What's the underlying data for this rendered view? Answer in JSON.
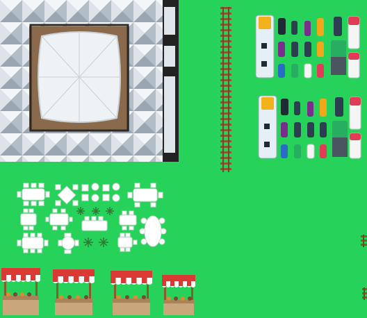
{
  "sheet": {
    "background": "#27d25b"
  },
  "tent": {
    "roof_color": "#eef2f4",
    "frame_color": "#2a2a2a",
    "ground_color": "#8a6a4a",
    "tile_color": "#b9c4cc"
  },
  "railway": {
    "rail_color": "#6b4a2a",
    "tie_color": "#8b5a2b"
  },
  "vehicle_groups": [
    {
      "bus_color": "#e6eef6",
      "bus_roof": "#f2b21b",
      "cars": [
        [
          "#1f2b33",
          "#e23b55",
          "#2c3e50",
          "#7a2e8c",
          "#f2a71b",
          "#2c3e50",
          "#f5f5f5"
        ],
        [
          "#7a2e8c",
          "#2c3e50",
          "#2c3e50",
          "#f2a71b",
          "#2a6cc5",
          "#27ae60",
          "#f5f5f5"
        ],
        [
          "#2a6cc5",
          "#27ae60",
          "#f5f5f5",
          "#e23b55",
          "#2c3e50",
          "#2c3e50",
          "#e23b55"
        ]
      ]
    },
    {
      "bus_color": "#e6eef6",
      "bus_roof": "#f2b21b",
      "cars": [
        [
          "#1f2b33",
          "#e23b55",
          "#2c3e50",
          "#7a2e8c",
          "#f2a71b",
          "#2c3e50",
          "#f5f5f5"
        ],
        [
          "#7a2e8c",
          "#2c3e50",
          "#2c3e50",
          "#f2a71b",
          "#2a6cc5",
          "#27ae60",
          "#f5f5f5"
        ],
        [
          "#2a6cc5",
          "#27ae60",
          "#f5f5f5",
          "#e23b55",
          "#2c3e50",
          "#2c3e50",
          "#e23b55"
        ]
      ]
    }
  ],
  "furniture": {
    "color": "#ffffff",
    "outline": "#d9d9d9"
  },
  "market_stalls": {
    "awning_red": "#d93b34",
    "awning_white": "#ffffff",
    "wood": "#c9a77b",
    "count": 4
  },
  "icons": [
    "tent-icon",
    "railway-track-icon",
    "bus-icon",
    "car-icon",
    "table-icon",
    "plant-icon",
    "market-stall-icon"
  ]
}
